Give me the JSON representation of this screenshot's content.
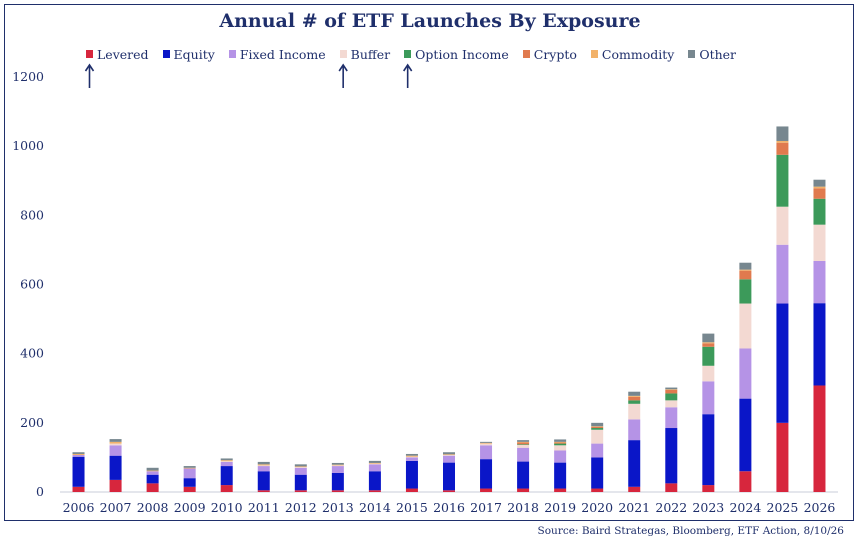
{
  "chart_data": {
    "type": "bar",
    "stacked": true,
    "title": "Annual # of ETF Launches By Exposure",
    "xlabel": "",
    "ylabel": "",
    "ylim": [
      0,
      1200
    ],
    "yticks": [
      0,
      200,
      400,
      600,
      800,
      1000,
      1200
    ],
    "grid": false,
    "legend_position": "top",
    "categories": [
      "2006",
      "2007",
      "2008",
      "2009",
      "2010",
      "2011",
      "2012",
      "2013",
      "2014",
      "2015",
      "2016",
      "2017",
      "2018",
      "2019",
      "2020",
      "2021",
      "2022",
      "2023",
      "2024",
      "2025",
      "2026"
    ],
    "series": [
      {
        "name": "Levered",
        "color": "#d7263d",
        "values": [
          15,
          35,
          25,
          15,
          20,
          5,
          5,
          5,
          5,
          10,
          5,
          10,
          10,
          10,
          10,
          15,
          25,
          20,
          60,
          200,
          308
        ]
      },
      {
        "name": "Equity",
        "color": "#0a16c8",
        "values": [
          87,
          70,
          25,
          25,
          55,
          55,
          45,
          50,
          55,
          80,
          80,
          85,
          78,
          75,
          90,
          135,
          160,
          205,
          210,
          345,
          238
        ]
      },
      {
        "name": "Fixed Income",
        "color": "#b593e6",
        "values": [
          5,
          30,
          10,
          28,
          12,
          15,
          20,
          20,
          20,
          10,
          20,
          40,
          40,
          35,
          40,
          60,
          60,
          95,
          145,
          170,
          122
        ]
      },
      {
        "name": "Buffer",
        "color": "#f3d9d2",
        "values": [
          0,
          5,
          0,
          0,
          2,
          2,
          2,
          2,
          2,
          2,
          2,
          5,
          8,
          15,
          40,
          45,
          20,
          45,
          130,
          110,
          105
        ]
      },
      {
        "name": "Option Income",
        "color": "#3c9a5a",
        "values": [
          0,
          0,
          0,
          0,
          0,
          0,
          0,
          0,
          0,
          0,
          0,
          0,
          2,
          5,
          5,
          10,
          20,
          55,
          70,
          150,
          75
        ]
      },
      {
        "name": "Crypto",
        "color": "#e07a4e",
        "values": [
          0,
          0,
          0,
          0,
          0,
          0,
          0,
          0,
          0,
          0,
          0,
          0,
          5,
          3,
          3,
          10,
          10,
          10,
          25,
          35,
          30
        ]
      },
      {
        "name": "Commodity",
        "color": "#f2b26a",
        "values": [
          3,
          5,
          2,
          2,
          3,
          3,
          2,
          2,
          2,
          3,
          2,
          2,
          2,
          2,
          2,
          3,
          2,
          3,
          3,
          5,
          5
        ]
      },
      {
        "name": "Other",
        "color": "#77878f",
        "values": [
          5,
          8,
          8,
          5,
          5,
          7,
          6,
          5,
          6,
          5,
          6,
          3,
          5,
          7,
          10,
          12,
          5,
          25,
          20,
          42,
          20
        ]
      }
    ],
    "annotations": [
      {
        "type": "arrow",
        "target_legend_entry": "Levered",
        "direction": "up",
        "color": "#1f2f6b"
      },
      {
        "type": "arrow",
        "target_legend_entry": "Buffer",
        "direction": "up",
        "color": "#1f2f6b"
      },
      {
        "type": "arrow",
        "target_legend_entry": "Option Income",
        "direction": "up",
        "color": "#1f2f6b"
      }
    ]
  },
  "source": "Source: Baird Strategas, Bloomberg, ETF Action, 8/10/26"
}
